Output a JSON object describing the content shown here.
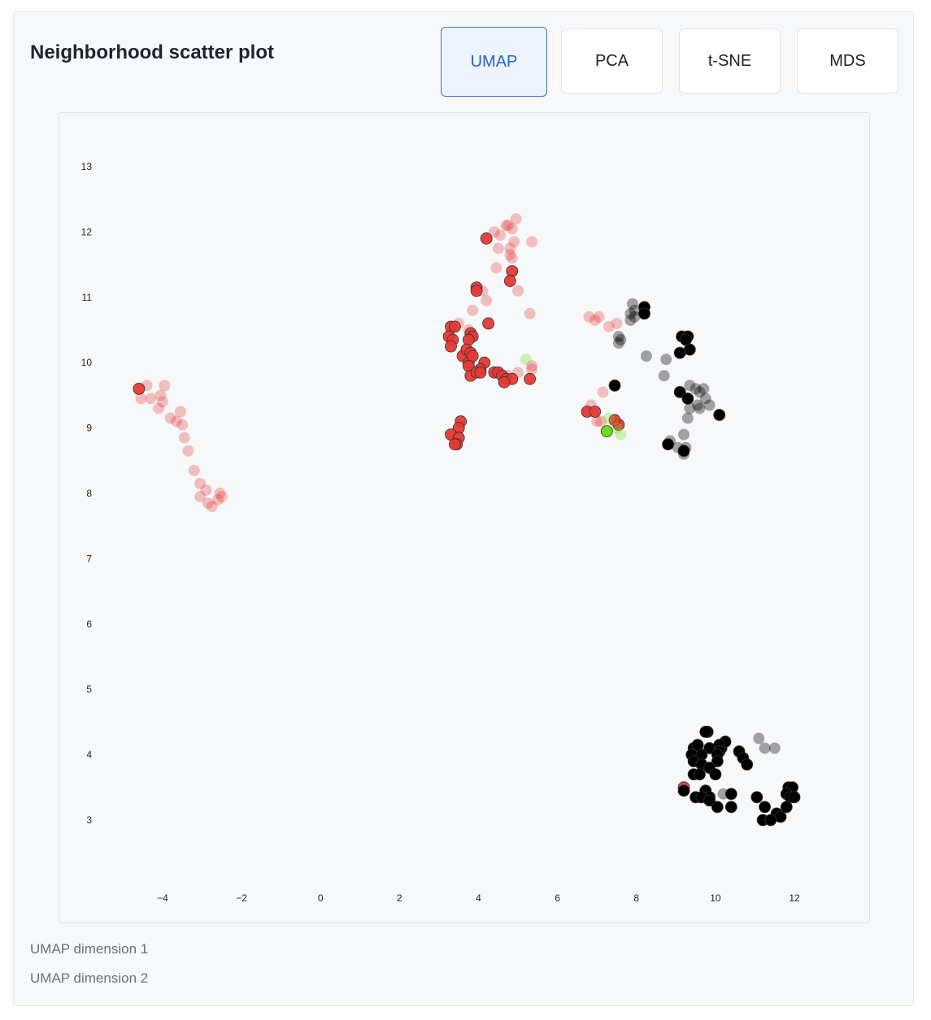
{
  "title": "Neighborhood scatter plot",
  "tabs": [
    {
      "label": "UMAP",
      "active": true
    },
    {
      "label": "PCA",
      "active": false
    },
    {
      "label": "t-SNE",
      "active": false
    },
    {
      "label": "MDS",
      "active": false
    }
  ],
  "footer": {
    "xlabel": "UMAP dimension 1",
    "ylabel": "UMAP dimension 2"
  },
  "colors": {
    "red": "#e53935",
    "black": "#000000",
    "green": "#6fdc1e",
    "active_tab": "#2a62c9"
  },
  "chart_data": {
    "type": "scatter",
    "xlabel": "UMAP dimension 1",
    "ylabel": "UMAP dimension 2",
    "xlim": [
      -5.6,
      14.6
    ],
    "ylim": [
      1.7,
      14.0
    ],
    "xticks": [
      -4,
      -2,
      0,
      2,
      4,
      6,
      8,
      10,
      12
    ],
    "yticks": [
      3,
      4,
      5,
      6,
      7,
      8,
      9,
      10,
      11,
      12,
      13
    ],
    "grid": false,
    "series": [
      {
        "color": "#e53935",
        "opacity": 0.3,
        "points": [
          [
            -4.4,
            9.65
          ],
          [
            -4.55,
            9.45
          ],
          [
            -4.3,
            9.45
          ],
          [
            -4.05,
            9.5
          ],
          [
            -3.95,
            9.65
          ],
          [
            -4.0,
            9.4
          ],
          [
            -4.1,
            9.3
          ],
          [
            -3.8,
            9.15
          ],
          [
            -3.65,
            9.1
          ],
          [
            -3.55,
            9.25
          ],
          [
            -3.5,
            9.05
          ],
          [
            -3.45,
            8.85
          ],
          [
            -3.35,
            8.65
          ],
          [
            -3.2,
            8.35
          ],
          [
            -3.05,
            8.15
          ],
          [
            -2.9,
            8.05
          ],
          [
            -3.05,
            7.95
          ],
          [
            -2.85,
            7.85
          ],
          [
            -2.75,
            7.8
          ],
          [
            -2.6,
            7.9
          ],
          [
            -2.5,
            7.95
          ],
          [
            -2.55,
            8.0
          ],
          [
            4.4,
            12.0
          ],
          [
            4.55,
            11.95
          ],
          [
            4.7,
            12.1
          ],
          [
            4.85,
            12.05
          ],
          [
            4.95,
            12.2
          ],
          [
            4.75,
            12.1
          ],
          [
            4.9,
            11.85
          ],
          [
            5.35,
            11.85
          ],
          [
            4.8,
            11.75
          ],
          [
            4.5,
            11.75
          ],
          [
            4.85,
            11.6
          ],
          [
            4.8,
            11.65
          ],
          [
            4.45,
            11.45
          ],
          [
            4.1,
            11.1
          ],
          [
            4.2,
            10.95
          ],
          [
            3.85,
            10.8
          ],
          [
            5.0,
            11.1
          ],
          [
            5.3,
            10.75
          ],
          [
            3.75,
            10.5
          ],
          [
            3.5,
            10.6
          ],
          [
            5.35,
            9.95
          ],
          [
            5.35,
            9.9
          ],
          [
            5.0,
            9.85
          ],
          [
            4.75,
            9.8
          ],
          [
            6.8,
            10.7
          ],
          [
            6.95,
            10.65
          ],
          [
            7.05,
            10.7
          ],
          [
            7.3,
            10.55
          ],
          [
            7.5,
            10.6
          ],
          [
            7.15,
            9.55
          ],
          [
            6.85,
            9.35
          ],
          [
            7.0,
            9.1
          ],
          [
            7.1,
            9.1
          ]
        ]
      },
      {
        "color": "#e53935",
        "opacity": 0.95,
        "points": [
          [
            -4.6,
            9.6
          ],
          [
            4.2,
            11.9
          ],
          [
            4.85,
            11.4
          ],
          [
            4.8,
            11.25
          ],
          [
            3.95,
            11.15
          ],
          [
            3.95,
            11.1
          ],
          [
            4.25,
            10.6
          ],
          [
            3.3,
            10.55
          ],
          [
            3.4,
            10.55
          ],
          [
            3.25,
            10.4
          ],
          [
            3.35,
            10.35
          ],
          [
            3.3,
            10.25
          ],
          [
            3.8,
            10.45
          ],
          [
            3.85,
            10.4
          ],
          [
            3.75,
            10.35
          ],
          [
            3.6,
            10.1
          ],
          [
            3.7,
            10.2
          ],
          [
            3.8,
            10.15
          ],
          [
            3.75,
            10.0
          ],
          [
            3.85,
            10.1
          ],
          [
            4.15,
            10.0
          ],
          [
            3.75,
            9.95
          ],
          [
            4.05,
            9.9
          ],
          [
            3.8,
            9.8
          ],
          [
            3.95,
            9.85
          ],
          [
            4.05,
            9.85
          ],
          [
            4.4,
            9.85
          ],
          [
            4.5,
            9.85
          ],
          [
            4.6,
            9.8
          ],
          [
            4.7,
            9.75
          ],
          [
            4.85,
            9.75
          ],
          [
            4.65,
            9.7
          ],
          [
            5.3,
            9.75
          ],
          [
            3.55,
            9.1
          ],
          [
            3.5,
            9.0
          ],
          [
            3.3,
            8.9
          ],
          [
            3.5,
            8.85
          ],
          [
            3.45,
            8.75
          ],
          [
            3.4,
            8.75
          ],
          [
            6.75,
            9.25
          ],
          [
            6.95,
            9.25
          ],
          [
            7.55,
            9.05
          ],
          [
            7.45,
            9.12
          ],
          [
            9.2,
            3.5
          ]
        ]
      },
      {
        "color": "#000000",
        "opacity": 0.35,
        "points": [
          [
            7.85,
            10.75
          ],
          [
            7.85,
            10.65
          ],
          [
            7.95,
            10.8
          ],
          [
            7.9,
            10.9
          ],
          [
            7.95,
            10.7
          ],
          [
            7.55,
            10.4
          ],
          [
            7.6,
            10.35
          ],
          [
            7.55,
            10.3
          ],
          [
            8.25,
            10.1
          ],
          [
            8.75,
            10.05
          ],
          [
            8.7,
            9.8
          ],
          [
            9.35,
            9.65
          ],
          [
            9.5,
            9.6
          ],
          [
            9.7,
            9.6
          ],
          [
            9.6,
            9.55
          ],
          [
            9.75,
            9.45
          ],
          [
            9.55,
            9.35
          ],
          [
            9.35,
            9.3
          ],
          [
            9.6,
            9.3
          ],
          [
            9.85,
            9.35
          ],
          [
            9.3,
            9.15
          ],
          [
            9.2,
            8.9
          ],
          [
            8.85,
            8.8
          ],
          [
            9.05,
            8.7
          ],
          [
            9.25,
            8.7
          ],
          [
            9.2,
            8.6
          ],
          [
            11.1,
            4.25
          ],
          [
            11.25,
            4.1
          ],
          [
            11.5,
            4.1
          ],
          [
            10.2,
            3.4
          ]
        ]
      },
      {
        "color": "#000000",
        "opacity": 1.0,
        "points": [
          [
            8.2,
            10.85
          ],
          [
            8.2,
            10.75
          ],
          [
            9.15,
            10.4
          ],
          [
            9.3,
            10.4
          ],
          [
            9.25,
            10.35
          ],
          [
            9.35,
            10.2
          ],
          [
            9.1,
            10.15
          ],
          [
            7.45,
            9.65
          ],
          [
            9.1,
            9.55
          ],
          [
            9.3,
            9.45
          ],
          [
            10.1,
            9.2
          ],
          [
            8.8,
            8.75
          ],
          [
            9.2,
            8.65
          ],
          [
            9.8,
            4.35
          ],
          [
            9.75,
            4.35
          ],
          [
            9.45,
            4.1
          ],
          [
            9.55,
            4.15
          ],
          [
            9.85,
            4.1
          ],
          [
            10.15,
            4.1
          ],
          [
            10.25,
            4.2
          ],
          [
            10.1,
            4.15
          ],
          [
            9.4,
            4.0
          ],
          [
            9.65,
            4.0
          ],
          [
            10.1,
            4.05
          ],
          [
            10.05,
            4.0
          ],
          [
            10.6,
            4.05
          ],
          [
            10.7,
            3.95
          ],
          [
            10.8,
            3.85
          ],
          [
            9.45,
            3.9
          ],
          [
            9.65,
            3.85
          ],
          [
            10.05,
            3.9
          ],
          [
            9.85,
            3.8
          ],
          [
            9.45,
            3.7
          ],
          [
            9.6,
            3.7
          ],
          [
            10.0,
            3.7
          ],
          [
            9.2,
            3.45
          ],
          [
            9.75,
            3.45
          ],
          [
            9.85,
            3.35
          ],
          [
            9.5,
            3.35
          ],
          [
            9.65,
            3.35
          ],
          [
            10.4,
            3.4
          ],
          [
            11.85,
            3.5
          ],
          [
            11.95,
            3.5
          ],
          [
            11.8,
            3.4
          ],
          [
            11.9,
            3.35
          ],
          [
            12.0,
            3.35
          ],
          [
            11.05,
            3.35
          ],
          [
            9.85,
            3.3
          ],
          [
            10.05,
            3.2
          ],
          [
            10.4,
            3.2
          ],
          [
            11.25,
            3.2
          ],
          [
            11.8,
            3.2
          ],
          [
            11.55,
            3.1
          ],
          [
            11.65,
            3.05
          ],
          [
            11.2,
            3.0
          ],
          [
            11.4,
            3.0
          ]
        ]
      },
      {
        "color": "#6fdc1e",
        "opacity": 0.3,
        "points": [
          [
            5.2,
            10.05
          ],
          [
            7.3,
            9.15
          ],
          [
            7.5,
            9.0
          ],
          [
            7.6,
            8.9
          ]
        ]
      },
      {
        "color": "#6fdc1e",
        "opacity": 1.0,
        "points": [
          [
            7.25,
            8.95
          ]
        ]
      }
    ]
  }
}
